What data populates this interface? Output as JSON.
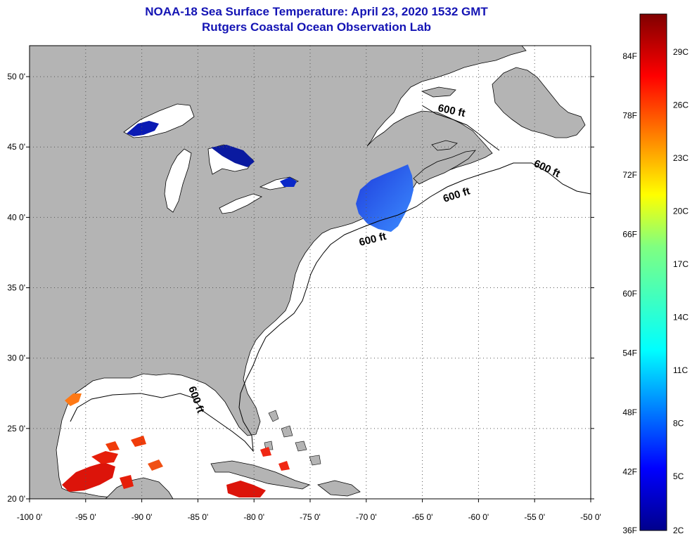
{
  "title": {
    "line1": "NOAA-18 Sea Surface Temperature:  April 23, 2020 1532 GMT",
    "line2": "Rutgers Coastal Ocean Observation Lab"
  },
  "map": {
    "lon_range": [
      -100,
      -50
    ],
    "lat_range": [
      20,
      52.2
    ],
    "x_ticks": [
      {
        "value": -100,
        "label": "-100 0'"
      },
      {
        "value": -95,
        "label": "-95 0'"
      },
      {
        "value": -90,
        "label": "-90 0'"
      },
      {
        "value": -85,
        "label": "-85 0'"
      },
      {
        "value": -80,
        "label": "-80 0'"
      },
      {
        "value": -75,
        "label": "-75 0'"
      },
      {
        "value": -70,
        "label": "-70 0'"
      },
      {
        "value": -65,
        "label": "-65 0'"
      },
      {
        "value": -60,
        "label": "-60 0'"
      },
      {
        "value": -55,
        "label": "-55 0'"
      },
      {
        "value": -50,
        "label": "-50 0'"
      }
    ],
    "y_ticks": [
      {
        "value": 50,
        "label": "50 0'"
      },
      {
        "value": 45,
        "label": "45 0'"
      },
      {
        "value": 40,
        "label": "40 0'"
      },
      {
        "value": 35,
        "label": "35 0'"
      },
      {
        "value": 30,
        "label": "30 0'"
      },
      {
        "value": 25,
        "label": "25 0'"
      },
      {
        "value": 20,
        "label": "20 0'"
      }
    ],
    "contour_labels": [
      "600 ft",
      "600 ft",
      "600 ft",
      "600 ft",
      "600 ft"
    ],
    "colors": {
      "land": "#b4b4b4",
      "ocean": "#ffffff",
      "grid": "#555555"
    }
  },
  "colorbar": {
    "fahrenheit": [
      "84F",
      "78F",
      "72F",
      "66F",
      "60F",
      "54F",
      "48F",
      "42F",
      "36F"
    ],
    "celsius": [
      "29C",
      "26C",
      "23C",
      "20C",
      "17C",
      "14C",
      "11C",
      "8C",
      "5C",
      "2C"
    ]
  }
}
